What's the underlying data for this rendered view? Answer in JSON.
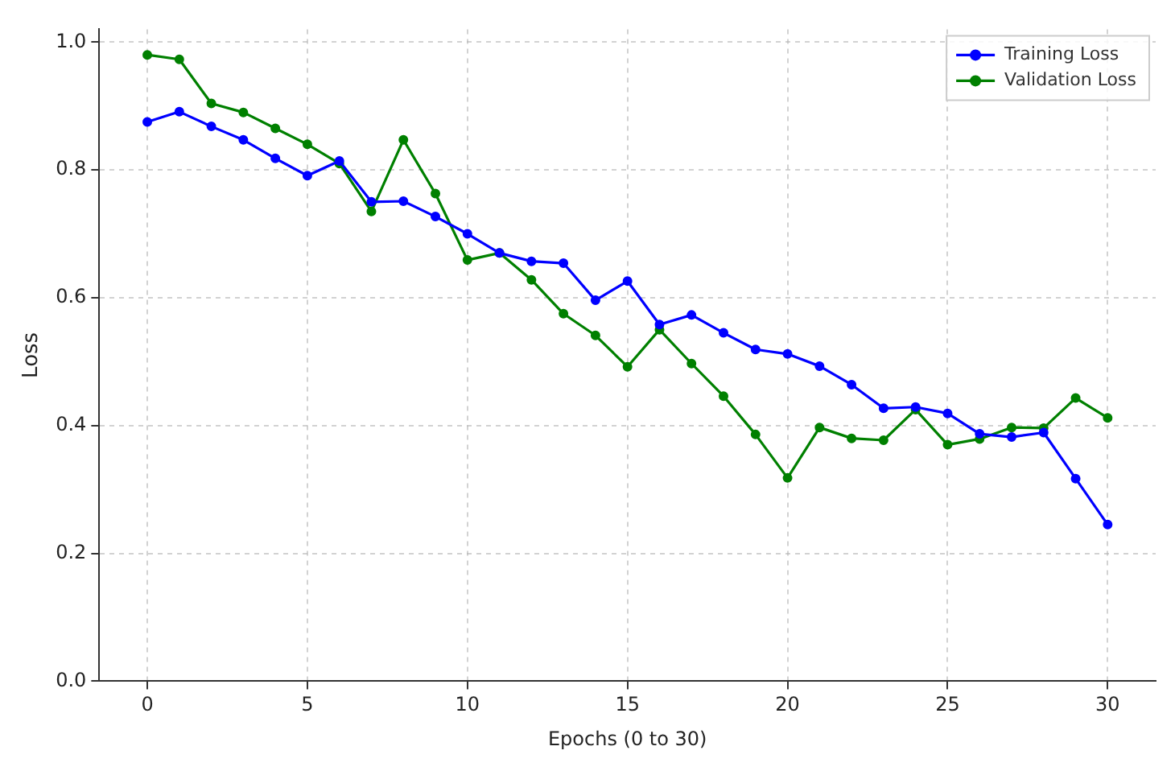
{
  "chart_data": {
    "type": "line",
    "xlabel": "Epochs (0 to 30)",
    "ylabel": "Loss",
    "x": [
      0,
      1,
      2,
      3,
      4,
      5,
      6,
      7,
      8,
      9,
      10,
      11,
      12,
      13,
      14,
      15,
      16,
      17,
      18,
      19,
      20,
      21,
      22,
      23,
      24,
      25,
      26,
      27,
      28,
      29,
      30
    ],
    "series": [
      {
        "name": "Training Loss",
        "color": "#0000ff",
        "values": [
          0.875,
          0.891,
          0.868,
          0.847,
          0.818,
          0.791,
          0.814,
          0.75,
          0.751,
          0.727,
          0.7,
          0.67,
          0.657,
          0.654,
          0.596,
          0.626,
          0.558,
          0.573,
          0.545,
          0.519,
          0.512,
          0.493,
          0.464,
          0.427,
          0.429,
          0.419,
          0.387,
          0.382,
          0.389,
          0.317,
          0.245
        ]
      },
      {
        "name": "Validation Loss",
        "color": "#008000",
        "values": [
          0.98,
          0.973,
          0.904,
          0.89,
          0.865,
          0.84,
          0.81,
          0.735,
          0.847,
          0.763,
          0.659,
          0.67,
          0.628,
          0.575,
          0.541,
          0.492,
          0.55,
          0.497,
          0.446,
          0.386,
          0.318,
          0.397,
          0.38,
          0.377,
          0.425,
          0.37,
          0.379,
          0.397,
          0.396,
          0.443,
          0.412
        ]
      }
    ],
    "xlim": [
      -1.5,
      31.5
    ],
    "xticks": [
      0,
      5,
      10,
      15,
      20,
      25,
      30
    ],
    "ylim": [
      0,
      1.02
    ],
    "yticks": [
      {
        "value": 0,
        "label": "0.0"
      },
      0.2,
      0.4,
      0.6,
      0.8,
      {
        "value": 1,
        "label": "1.0"
      }
    ],
    "grid": true,
    "legend": "top right",
    "marker": "circle",
    "line_style": "solid"
  }
}
